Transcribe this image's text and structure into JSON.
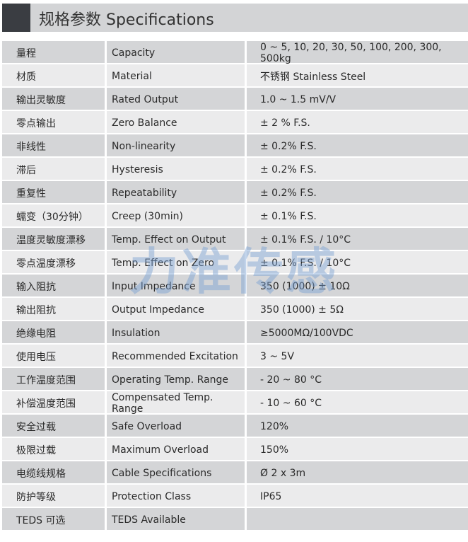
{
  "title": "规格参数 Specifications",
  "watermark": "力准传感",
  "rows": [
    [
      "量程",
      "Capacity",
      "0 ~ 5, 10, 20, 30, 50, 100, 200, 300, 500kg"
    ],
    [
      "材质",
      "Material",
      "不锈钢 Stainless Steel"
    ],
    [
      "输出灵敏度",
      "Rated Output",
      "1.0 ~ 1.5 mV/V"
    ],
    [
      "零点输出",
      "Zero Balance",
      "± 2 % F.S."
    ],
    [
      "非线性",
      "Non-linearity",
      "± 0.2% F.S."
    ],
    [
      "滞后",
      "Hysteresis",
      "± 0.2% F.S."
    ],
    [
      "重复性",
      "Repeatability",
      "± 0.2% F.S."
    ],
    [
      "蠕变（30分钟）",
      "Creep (30min)",
      "± 0.1% F.S."
    ],
    [
      "温度灵敏度漂移",
      "Temp. Effect on Output",
      "± 0.1% F.S. / 10°C"
    ],
    [
      "零点温度漂移",
      "Temp. Effect on Zero",
      "± 0.1% F.S. / 10°C"
    ],
    [
      "输入阻抗",
      "Input Impedance",
      "350 (1000) ± 10Ω"
    ],
    [
      "输出阻抗",
      "Output Impedance",
      "350 (1000) ± 5Ω"
    ],
    [
      "绝缘电阻",
      "Insulation",
      "≥5000MΩ/100VDC"
    ],
    [
      "使用电压",
      "Recommended Excitation",
      "3 ~ 5V"
    ],
    [
      "工作温度范围",
      "Operating Temp. Range",
      "- 20 ~ 80 °C"
    ],
    [
      "补偿温度范围",
      "Compensated Temp. Range",
      "- 10 ~ 60 °C"
    ],
    [
      "安全过载",
      "Safe Overload",
      "120%"
    ],
    [
      "极限过载",
      "Maximum Overload",
      "150%"
    ],
    [
      "电缆线规格",
      "Cable Specifications",
      "Ø 2 x 3m"
    ],
    [
      "防护等级",
      "Protection Class",
      "IP65"
    ],
    [
      "TEDS 可选",
      "TEDS Available",
      ""
    ]
  ]
}
